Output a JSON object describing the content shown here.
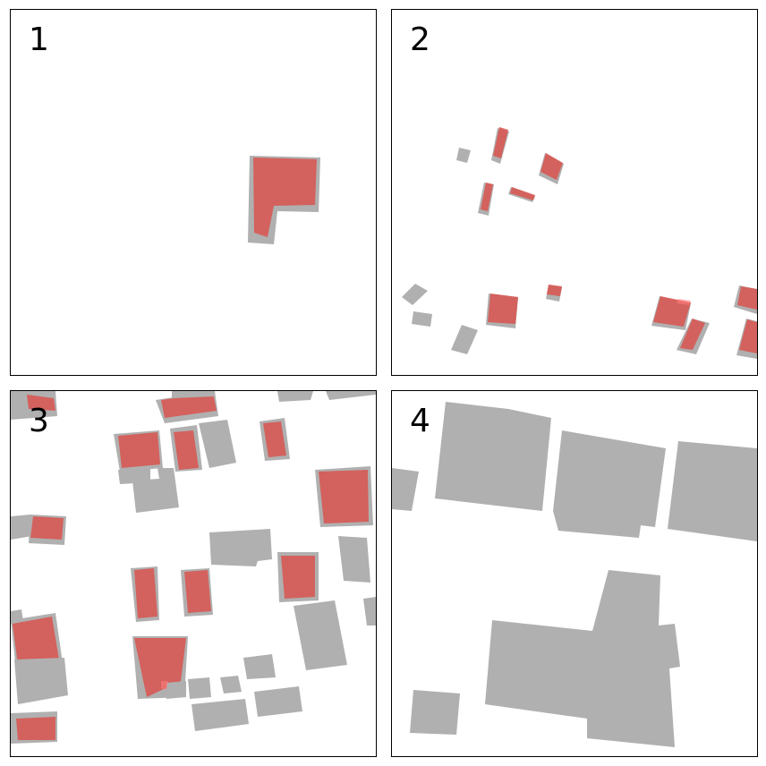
{
  "panels": [
    {
      "label": "1"
    },
    {
      "label": "2"
    },
    {
      "label": "3"
    },
    {
      "label": "4"
    }
  ],
  "colors": {
    "ground_truth": "#b0b0b0",
    "prediction": "#d9534f",
    "border": "#000000",
    "background": "#ffffff"
  }
}
